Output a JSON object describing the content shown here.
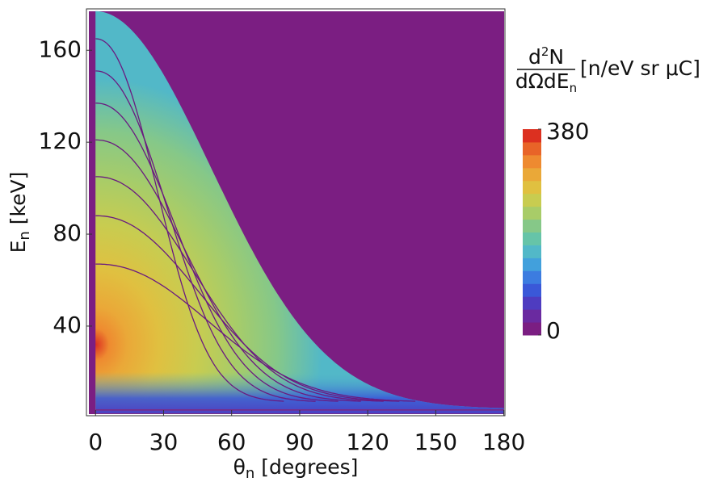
{
  "chart_data": {
    "type": "density",
    "xlabel": [
      "θ",
      "n",
      " [degrees]"
    ],
    "ylabel": [
      "E",
      "n",
      " [keV]"
    ],
    "xlim": [
      -4,
      180.5
    ],
    "ylim": [
      1,
      178
    ],
    "xticks": [
      0,
      30,
      60,
      90,
      120,
      150,
      180
    ],
    "yticks": [
      40,
      80,
      120,
      160
    ],
    "background": "#7b1e82",
    "colorbar": {
      "label_numerator": [
        "d",
        "2",
        "N"
      ],
      "label_denominator": [
        "dΩdE",
        "n"
      ],
      "label_units": "[n/eV sr μC]",
      "lim": [
        0,
        380
      ],
      "ticks": [
        0,
        380
      ],
      "colors": [
        "#7b1e82",
        "#6a2aa0",
        "#4e3cc0",
        "#3a58d8",
        "#3c7ce0",
        "#42a0dc",
        "#52b8c8",
        "#66c4a8",
        "#86c888",
        "#a8cc68",
        "#c8cc50",
        "#e0c040",
        "#eaa838",
        "#ee8a30",
        "#e86428",
        "#dc3020"
      ]
    }
  }
}
